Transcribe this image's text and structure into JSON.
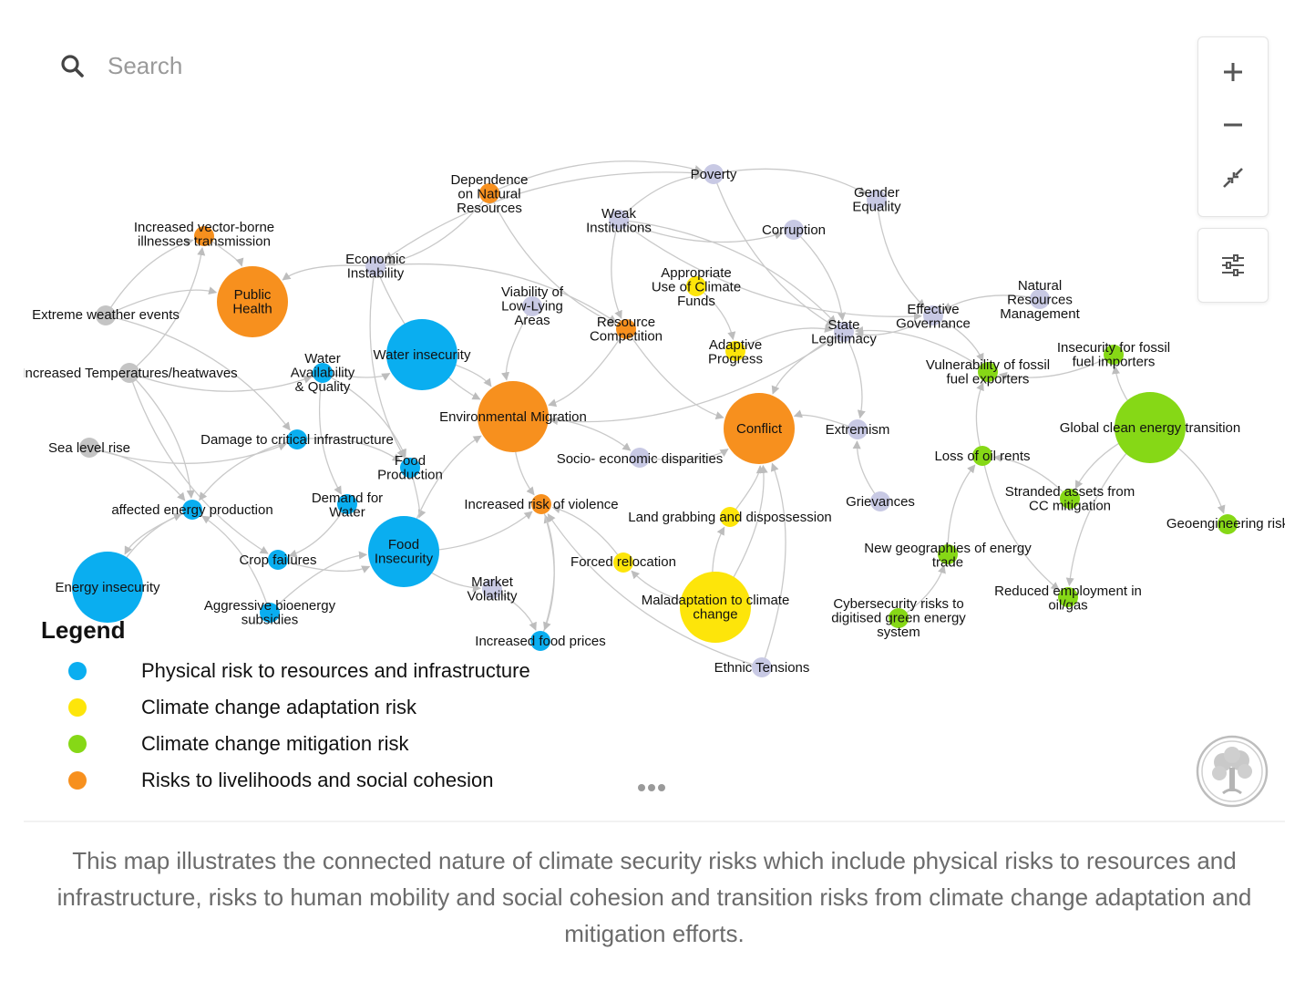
{
  "search": {
    "placeholder": "Search"
  },
  "colors": {
    "physical": "#0aaef0",
    "adaptation": "#fde50a",
    "mitigation": "#86d816",
    "livelihoods": "#f7901e",
    "other": "#c8c9e4",
    "climate": "#c4c4c4",
    "edge": "#c9c9c9"
  },
  "zoom_controls": {
    "zoom_in": "plus-icon",
    "zoom_out": "minus-icon",
    "fit": "collapse-arrows-icon",
    "settings": "sliders-icon"
  },
  "legend": {
    "title": "Legend",
    "items": [
      {
        "label": "Physical risk to resources and infrastructure",
        "color": "#0aaef0"
      },
      {
        "label": "Climate change adaptation risk",
        "color": "#fde50a"
      },
      {
        "label": "Climate change mitigation risk",
        "color": "#86d816"
      },
      {
        "label": "Risks to livelihoods and social cohesion",
        "color": "#f7901e"
      }
    ]
  },
  "graph": {
    "nodes": [
      {
        "id": "vector",
        "label": "Increased vector-borne illnesses transmission",
        "group": "livelihoods",
        "size": "s"
      },
      {
        "id": "extreme",
        "label": "Extreme weather events",
        "group": "climate",
        "size": "s"
      },
      {
        "id": "temps",
        "label": "Increased Temperatures/heatwaves",
        "group": "climate",
        "size": "s"
      },
      {
        "id": "sealevel",
        "label": "Sea level rise",
        "group": "climate",
        "size": "s"
      },
      {
        "id": "publichealth",
        "label": "Public Health",
        "group": "livelihoods",
        "size": "l"
      },
      {
        "id": "econ",
        "label": "Economic Instability",
        "group": "other",
        "size": "s"
      },
      {
        "id": "depnat",
        "label": "Dependence on Natural Resources",
        "group": "livelihoods",
        "size": "s"
      },
      {
        "id": "weak",
        "label": "Weak Institutions",
        "group": "other",
        "size": "s"
      },
      {
        "id": "poverty",
        "label": "Poverty",
        "group": "other",
        "size": "s"
      },
      {
        "id": "gender",
        "label": "Gender Equality",
        "group": "other",
        "size": "s"
      },
      {
        "id": "corruption",
        "label": "Corruption",
        "group": "other",
        "size": "s"
      },
      {
        "id": "approp",
        "label": "Appropriate Use of Climate Funds",
        "group": "adaptation",
        "size": "s"
      },
      {
        "id": "viability",
        "label": "Viability of Low-Lying Areas",
        "group": "other",
        "size": "s"
      },
      {
        "id": "rescomp",
        "label": "Resource Competition",
        "group": "livelihoods",
        "size": "s"
      },
      {
        "id": "adaptprog",
        "label": "Adaptive Progress",
        "group": "adaptation",
        "size": "s"
      },
      {
        "id": "statelegit",
        "label": "State Legitimacy",
        "group": "other",
        "size": "s"
      },
      {
        "id": "effgov",
        "label": "Effective Governance",
        "group": "other",
        "size": "s"
      },
      {
        "id": "natresmgmt",
        "label": "Natural Resources Management",
        "group": "other",
        "size": "s"
      },
      {
        "id": "water",
        "label": "Water Availability & Quality",
        "group": "physical",
        "size": "s"
      },
      {
        "id": "waterinsec",
        "label": "Water insecurity",
        "group": "physical",
        "size": "l"
      },
      {
        "id": "envmig",
        "label": "Environmental Migration",
        "group": "livelihoods",
        "size": "l"
      },
      {
        "id": "conflict",
        "label": "Conflict",
        "group": "livelihoods",
        "size": "l"
      },
      {
        "id": "extremism",
        "label": "Extremism",
        "group": "other",
        "size": "s"
      },
      {
        "id": "vulnfossil",
        "label": "Vulnerability of fossil fuel exporters",
        "group": "mitigation",
        "size": "s"
      },
      {
        "id": "insecfossil",
        "label": "Insecurity for fossil fuel importers",
        "group": "mitigation",
        "size": "s"
      },
      {
        "id": "globalclean",
        "label": "Global clean energy transition",
        "group": "mitigation",
        "size": "l"
      },
      {
        "id": "damage",
        "label": "Damage to critical infrastructure",
        "group": "physical",
        "size": "s"
      },
      {
        "id": "foodprod",
        "label": "Food Production",
        "group": "physical",
        "size": "s"
      },
      {
        "id": "socioecon",
        "label": "Socio- economic disparities",
        "group": "other",
        "size": "s"
      },
      {
        "id": "lossoil",
        "label": "Loss of oil rents",
        "group": "mitigation",
        "size": "s"
      },
      {
        "id": "affected",
        "label": "affected energy production",
        "group": "physical",
        "size": "s"
      },
      {
        "id": "demandwater",
        "label": "Demand for Water",
        "group": "physical",
        "size": "s"
      },
      {
        "id": "violence",
        "label": "Increased risk of violence",
        "group": "livelihoods",
        "size": "s"
      },
      {
        "id": "landgrab",
        "label": "Land grabbing and dispossession",
        "group": "adaptation",
        "size": "s"
      },
      {
        "id": "grievances",
        "label": "Grievances",
        "group": "other",
        "size": "s"
      },
      {
        "id": "stranded",
        "label": "Stranded assets from CC mitigation",
        "group": "mitigation",
        "size": "s"
      },
      {
        "id": "geoeng",
        "label": "Geoengineering risk",
        "group": "mitigation",
        "size": "s"
      },
      {
        "id": "cropfail",
        "label": "Crop failures",
        "group": "physical",
        "size": "s"
      },
      {
        "id": "foodinsec",
        "label": "Food Insecurity",
        "group": "physical",
        "size": "l"
      },
      {
        "id": "energyinsec",
        "label": "Energy insecurity",
        "group": "physical",
        "size": "l"
      },
      {
        "id": "forced",
        "label": "Forced relocation",
        "group": "adaptation",
        "size": "s"
      },
      {
        "id": "newgeo",
        "label": "New geographies of energy trade",
        "group": "mitigation",
        "size": "s"
      },
      {
        "id": "market",
        "label": "Market Volatility",
        "group": "other",
        "size": "s"
      },
      {
        "id": "maladapt",
        "label": "Maladaptation to climate change",
        "group": "adaptation",
        "size": "l"
      },
      {
        "id": "reduced",
        "label": "Reduced employment in oil/gas",
        "group": "mitigation",
        "size": "s"
      },
      {
        "id": "aggressive",
        "label": "Aggressive bioenergy subsidies",
        "group": "physical",
        "size": "s"
      },
      {
        "id": "cyber",
        "label": "Cybersecurity risks to digitised green energy system",
        "group": "mitigation",
        "size": "s"
      },
      {
        "id": "foodprices",
        "label": "Increased food prices",
        "group": "physical",
        "size": "s"
      },
      {
        "id": "ethnic",
        "label": "Ethnic Tensions",
        "group": "other",
        "size": "s"
      }
    ],
    "edges": [
      [
        "extreme",
        "vector"
      ],
      [
        "temps",
        "vector"
      ],
      [
        "vector",
        "publichealth"
      ],
      [
        "econ",
        "publichealth"
      ],
      [
        "extreme",
        "publichealth"
      ],
      [
        "temps",
        "water"
      ],
      [
        "temps",
        "affected"
      ],
      [
        "temps",
        "cropfail"
      ],
      [
        "extreme",
        "damage"
      ],
      [
        "sealevel",
        "damage"
      ],
      [
        "sealevel",
        "affected"
      ],
      [
        "water",
        "demandwater"
      ],
      [
        "water",
        "foodprod"
      ],
      [
        "water",
        "waterinsec"
      ],
      [
        "waterinsec",
        "envmig"
      ],
      [
        "damage",
        "affected"
      ],
      [
        "damage",
        "foodprod"
      ],
      [
        "affected",
        "energyinsec"
      ],
      [
        "demandwater",
        "cropfail"
      ],
      [
        "cropfail",
        "foodinsec"
      ],
      [
        "foodprod",
        "foodinsec"
      ],
      [
        "foodinsec",
        "market"
      ],
      [
        "foodinsec",
        "envmig"
      ],
      [
        "foodinsec",
        "violence"
      ],
      [
        "market",
        "foodprices"
      ],
      [
        "foodprices",
        "violence"
      ],
      [
        "aggressive",
        "foodinsec"
      ],
      [
        "aggressive",
        "affected"
      ],
      [
        "energyinsec",
        "affected"
      ],
      [
        "econ",
        "envmig"
      ],
      [
        "econ",
        "rescomp"
      ],
      [
        "depnat",
        "rescomp"
      ],
      [
        "depnat",
        "econ"
      ],
      [
        "weak",
        "rescomp"
      ],
      [
        "weak",
        "poverty"
      ],
      [
        "weak",
        "corruption"
      ],
      [
        "weak",
        "statelegit"
      ],
      [
        "poverty",
        "econ"
      ],
      [
        "poverty",
        "gender"
      ],
      [
        "poverty",
        "statelegit"
      ],
      [
        "corruption",
        "statelegit"
      ],
      [
        "gender",
        "effgov"
      ],
      [
        "effgov",
        "statelegit"
      ],
      [
        "natresmgmt",
        "effgov"
      ],
      [
        "approp",
        "adaptprog"
      ],
      [
        "viability",
        "envmig"
      ],
      [
        "rescomp",
        "envmig"
      ],
      [
        "rescomp",
        "conflict"
      ],
      [
        "adaptprog",
        "statelegit"
      ],
      [
        "statelegit",
        "conflict"
      ],
      [
        "statelegit",
        "extremism"
      ],
      [
        "extremism",
        "conflict"
      ],
      [
        "grievances",
        "extremism"
      ],
      [
        "envmig",
        "violence"
      ],
      [
        "envmig",
        "socioecon"
      ],
      [
        "socioecon",
        "conflict"
      ],
      [
        "statelegit",
        "envmig"
      ],
      [
        "landgrab",
        "conflict"
      ],
      [
        "maladapt",
        "landgrab"
      ],
      [
        "maladapt",
        "conflict"
      ],
      [
        "maladapt",
        "forced"
      ],
      [
        "forced",
        "violence"
      ],
      [
        "ethnic",
        "violence"
      ],
      [
        "ethnic",
        "conflict"
      ],
      [
        "violence",
        "foodprices"
      ],
      [
        "vulnfossil",
        "statelegit"
      ],
      [
        "insecfossil",
        "vulnfossil"
      ],
      [
        "globalclean",
        "stranded"
      ],
      [
        "globalclean",
        "geoeng"
      ],
      [
        "globalclean",
        "reduced"
      ],
      [
        "globalclean",
        "insecfossil"
      ],
      [
        "stranded",
        "lossoil"
      ],
      [
        "lossoil",
        "vulnfossil"
      ],
      [
        "lossoil",
        "reduced"
      ],
      [
        "newgeo",
        "lossoil"
      ],
      [
        "cyber",
        "newgeo"
      ],
      [
        "effgov",
        "vulnfossil"
      ],
      [
        "weak",
        "effgov"
      ],
      [
        "depnat",
        "poverty"
      ],
      [
        "econ",
        "foodprod"
      ]
    ]
  },
  "caption": "This map illustrates the connected nature of climate security risks which include physical risks to resources and infrastructure, risks to human mobility and social cohesion and transition risks from climate change adaptation and mitigation efforts."
}
